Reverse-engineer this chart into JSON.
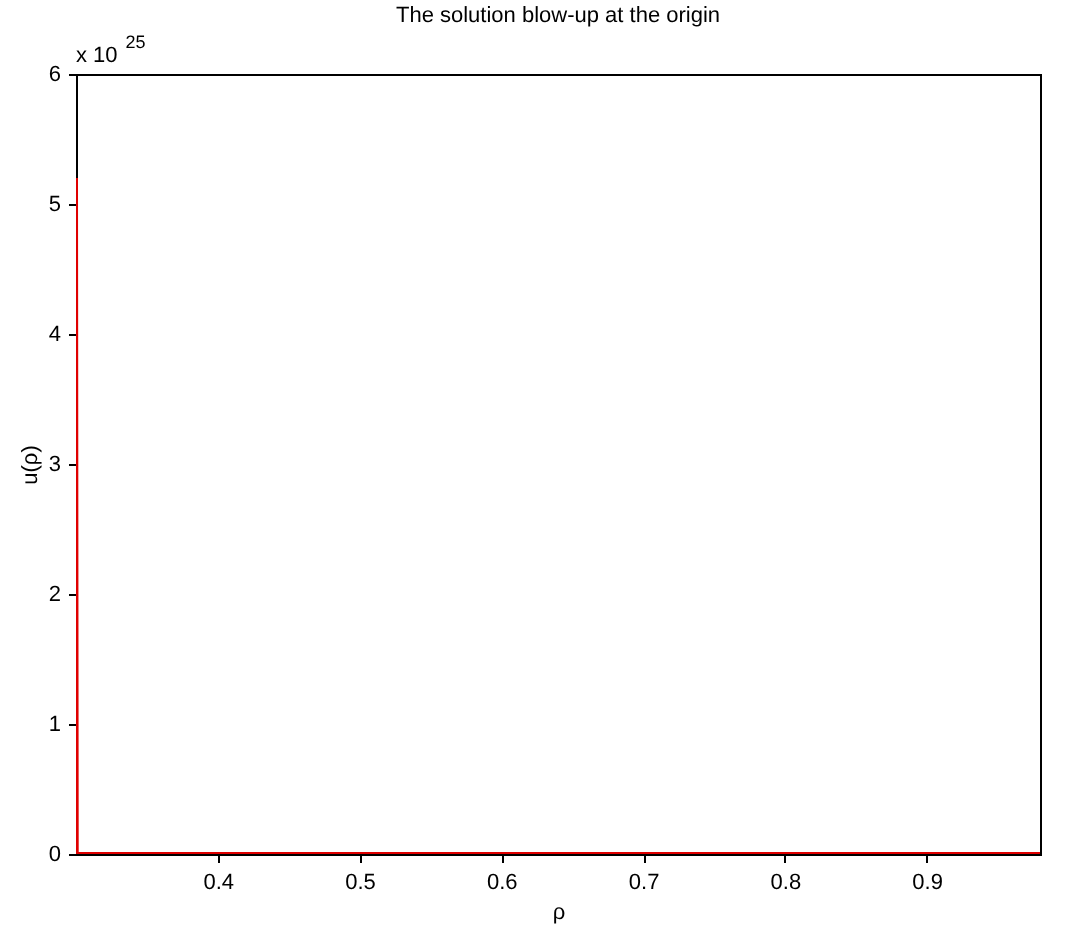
{
  "chart_data": {
    "type": "line",
    "title": "The solution blow-up at the origin",
    "xlabel": "ρ",
    "ylabel": "u(ρ)",
    "x": [
      0.3,
      0.3005,
      0.98
    ],
    "series": [
      {
        "color": "#e00000",
        "values": [
          5.2,
          0,
          0
        ]
      }
    ],
    "xlim": [
      0.3,
      0.98
    ],
    "xticks": [
      0.4,
      0.5,
      0.6,
      0.7,
      0.8,
      0.9
    ],
    "ylim": [
      0,
      6
    ],
    "yticks": [
      0,
      1,
      2,
      3,
      4,
      5,
      6
    ],
    "annotations": [
      "x 10$^{25}$"
    ],
    "grid": false,
    "legend": false,
    "marker": "none",
    "line_style": "solid"
  }
}
